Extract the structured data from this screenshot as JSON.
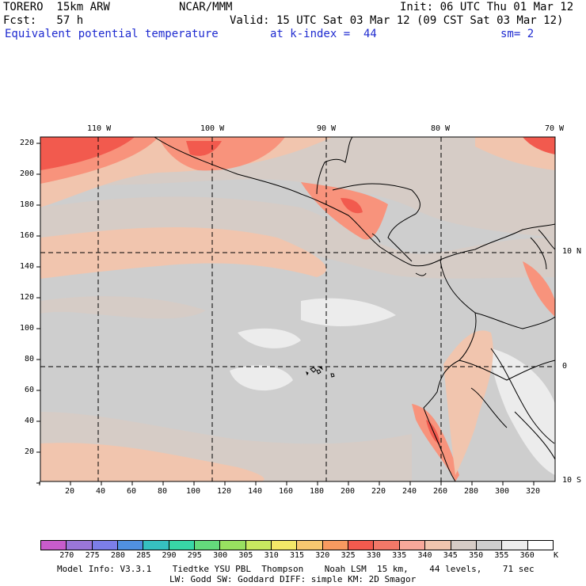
{
  "header": {
    "model": "TORERO  15km ARW",
    "org": "NCAR/MMM",
    "init": "Init: 06 UTC Thu 01 Mar 12",
    "fcst": "Fcst:   57 h",
    "valid": "Valid: 15 UTC Sat 03 Mar 12 (09 CST Sat 03 Mar 12)",
    "field": "Equivalent potential temperature",
    "level": "at k-index =  44",
    "smooth": "sm= 2"
  },
  "map": {
    "top_lon_labels": [
      "110 W",
      "100 W",
      "90 W",
      "80 W",
      "70 W"
    ],
    "right_lat_labels": [
      "10 N",
      "0",
      "10 S"
    ],
    "left_grid_labels": [
      "220",
      "200",
      "180",
      "160",
      "140",
      "120",
      "100",
      "80",
      "60",
      "40",
      "20"
    ],
    "bottom_grid_labels": [
      "20",
      "40",
      "60",
      "80",
      "100",
      "120",
      "140",
      "160",
      "180",
      "200",
      "220",
      "240",
      "260",
      "280",
      "300",
      "320"
    ],
    "grid_style": "dashed",
    "fill_colors": {
      "warm_core": "#f25a4e",
      "warm": "#f8937c",
      "mild": "#f1c5ae",
      "cool": "#d6ccc6",
      "cooler": "#cecece",
      "coolest": "#ececec"
    }
  },
  "colorbar": {
    "labels": [
      "270",
      "275",
      "280",
      "285",
      "290",
      "295",
      "300",
      "305",
      "310",
      "315",
      "320",
      "325",
      "330",
      "335",
      "340",
      "345",
      "350",
      "355",
      "360"
    ],
    "unit": "K",
    "colors": [
      "#c85ccc",
      "#9a76d8",
      "#7c7ee8",
      "#5090e0",
      "#36c0c0",
      "#38d6a6",
      "#64da7c",
      "#98e060",
      "#c8e860",
      "#f4e868",
      "#f8c870",
      "#f89a60",
      "#f25a4e",
      "#f27868",
      "#f8a89a",
      "#f1c5ae",
      "#d6ccc6",
      "#cecece",
      "#ececec",
      "#ffffff"
    ]
  },
  "footer": {
    "line1": "Model Info: V3.3.1    Tiedtke YSU PBL  Thompson    Noah LSM  15 km,    44 levels,    71 sec",
    "line2": "LW: Godd SW: Goddard DIFF: simple KM: 2D Smagor"
  }
}
